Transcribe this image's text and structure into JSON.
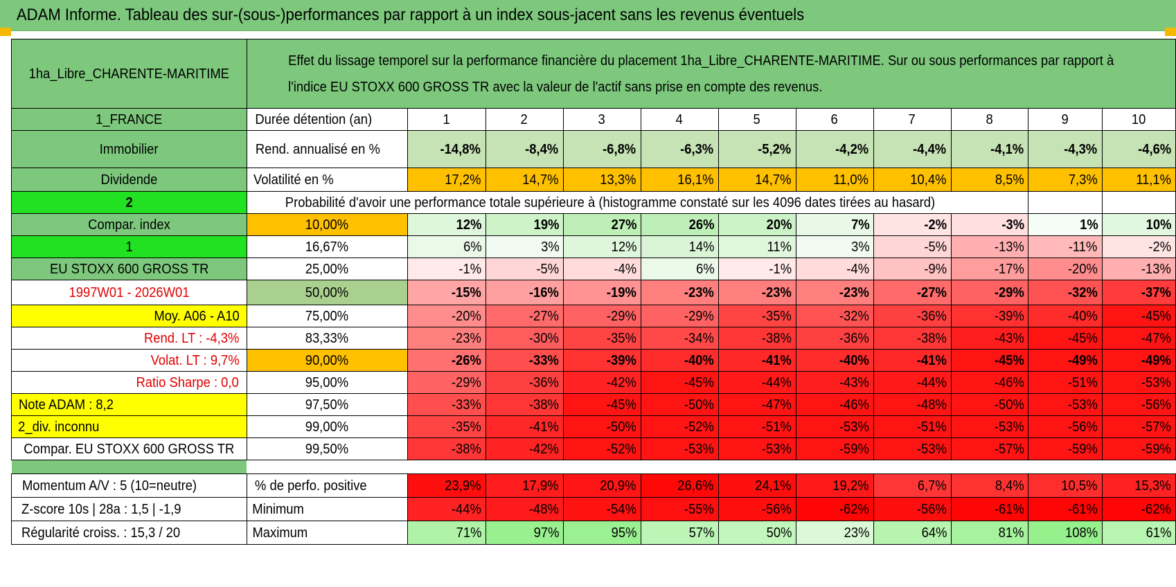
{
  "title": "ADAM Informe. Tableau des sur-(sous-)performances par rapport à un index sous-jacent sans les revenus éventuels",
  "asset_name": "1ha_Libre_CHARENTE-MARITIME",
  "description": "Effet du lissage temporel sur la performance financière du placement 1ha_Libre_CHARENTE-MARITIME. Sur ou sous performances par rapport à l'indice EU STOXX 600 GROSS TR avec la valeur de l'actif sans prise en compte des revenus.",
  "sidebar": {
    "country": "1_FRANCE",
    "category": "Immobilier",
    "dividend": "Dividende",
    "num_2": "2",
    "compar_index": "Compar. index",
    "num_1": "1",
    "index_name": "EU STOXX 600 GROSS TR",
    "period": "1997W01 - 2026W01",
    "moy": "Moy. A06 - A10",
    "rend_lt": "Rend. LT :    -4,3%",
    "volat_lt": "Volat. LT :    9,7%",
    "sharpe": "Ratio Sharpe :     0,0",
    "note": "Note ADAM : 8,2",
    "div": "2_div. inconnu",
    "compar_full": "Compar. EU STOXX 600 GROSS TR",
    "momentum": "Momentum A/V : 5 (10=neutre)",
    "zscore": "Z-score 10s | 28a : 1,5 | -1,9",
    "regularite": "Régularité croiss. : 15,3 / 20"
  },
  "labels": {
    "duree": "Durée détention (an)",
    "rend": "Rend. annualisé en %",
    "volat": "Volatilité en %",
    "proba": "Probabilité d'avoir une performance totale supérieure à (histogramme constaté sur les 4096 dates tirées au hasard)",
    "pct_pos": "% de perfo. positive",
    "minimum": "Minimum",
    "maximum": "Maximum"
  },
  "years": [
    "1",
    "2",
    "3",
    "4",
    "5",
    "6",
    "7",
    "8",
    "9",
    "10"
  ],
  "rend": [
    "-14,8%",
    "-8,4%",
    "-6,8%",
    "-6,3%",
    "-5,2%",
    "-4,2%",
    "-4,4%",
    "-4,1%",
    "-4,3%",
    "-4,6%"
  ],
  "volat": [
    "17,2%",
    "14,7%",
    "13,3%",
    "16,1%",
    "14,7%",
    "11,0%",
    "10,4%",
    "8,5%",
    "7,3%",
    "11,1%"
  ],
  "quantiles": [
    {
      "q": "10,00%",
      "v": [
        "12%",
        "19%",
        "27%",
        "26%",
        "20%",
        "7%",
        "-2%",
        "-3%",
        "1%",
        "10%"
      ]
    },
    {
      "q": "16,67%",
      "v": [
        "6%",
        "3%",
        "12%",
        "14%",
        "11%",
        "3%",
        "-5%",
        "-13%",
        "-11%",
        "-2%"
      ]
    },
    {
      "q": "25,00%",
      "v": [
        "-1%",
        "-5%",
        "-4%",
        "6%",
        "-1%",
        "-4%",
        "-9%",
        "-17%",
        "-20%",
        "-13%"
      ]
    },
    {
      "q": "50,00%",
      "v": [
        "-15%",
        "-16%",
        "-19%",
        "-23%",
        "-23%",
        "-23%",
        "-27%",
        "-29%",
        "-32%",
        "-37%"
      ]
    },
    {
      "q": "75,00%",
      "v": [
        "-20%",
        "-27%",
        "-29%",
        "-29%",
        "-35%",
        "-32%",
        "-36%",
        "-39%",
        "-40%",
        "-45%"
      ]
    },
    {
      "q": "83,33%",
      "v": [
        "-23%",
        "-30%",
        "-35%",
        "-34%",
        "-38%",
        "-36%",
        "-38%",
        "-43%",
        "-45%",
        "-47%"
      ]
    },
    {
      "q": "90,00%",
      "v": [
        "-26%",
        "-33%",
        "-39%",
        "-40%",
        "-41%",
        "-40%",
        "-41%",
        "-45%",
        "-49%",
        "-49%"
      ]
    },
    {
      "q": "95,00%",
      "v": [
        "-29%",
        "-36%",
        "-42%",
        "-45%",
        "-44%",
        "-43%",
        "-44%",
        "-46%",
        "-51%",
        "-53%"
      ]
    },
    {
      "q": "97,50%",
      "v": [
        "-33%",
        "-38%",
        "-45%",
        "-50%",
        "-47%",
        "-46%",
        "-48%",
        "-50%",
        "-53%",
        "-56%"
      ]
    },
    {
      "q": "99,00%",
      "v": [
        "-35%",
        "-41%",
        "-50%",
        "-52%",
        "-51%",
        "-53%",
        "-51%",
        "-53%",
        "-56%",
        "-57%"
      ]
    },
    {
      "q": "99,50%",
      "v": [
        "-38%",
        "-42%",
        "-52%",
        "-53%",
        "-53%",
        "-59%",
        "-53%",
        "-57%",
        "-59%",
        "-59%"
      ]
    }
  ],
  "pct_pos": [
    "23,9%",
    "17,9%",
    "20,9%",
    "26,6%",
    "24,1%",
    "19,2%",
    "6,7%",
    "8,4%",
    "10,5%",
    "15,3%"
  ],
  "minimum": [
    "-44%",
    "-48%",
    "-54%",
    "-55%",
    "-56%",
    "-62%",
    "-56%",
    "-61%",
    "-61%",
    "-62%"
  ],
  "maximum": [
    "71%",
    "97%",
    "95%",
    "57%",
    "50%",
    "23%",
    "64%",
    "81%",
    "108%",
    "61%"
  ],
  "colors": {
    "green_header": "#7dc87d",
    "bright_green": "#22e022",
    "yellow": "#ffff00",
    "orange": "#ffc000",
    "red_text": "#e00000",
    "rend_green": "#c6e3b5",
    "q50_green": "#a9d08e"
  }
}
